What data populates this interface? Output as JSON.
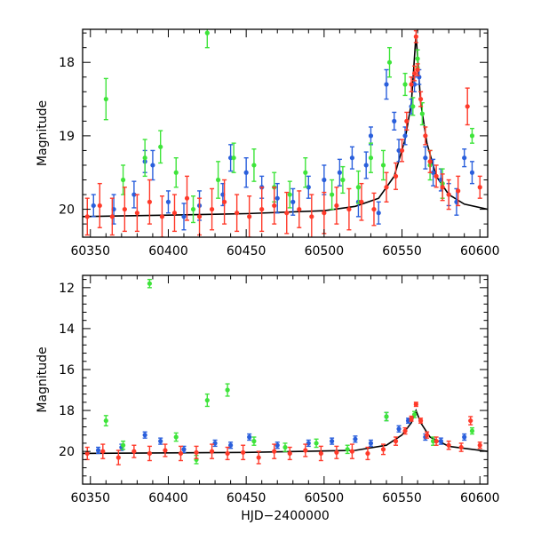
{
  "chart_data": [
    {
      "type": "scatter",
      "panel": "top",
      "xlabel": "",
      "ylabel": "Magnitude",
      "xlim": [
        60345,
        60605
      ],
      "ylim": [
        20.38,
        17.55
      ],
      "x_ticks": [
        60350,
        60400,
        60450,
        60500,
        60550,
        60600
      ],
      "y_ticks": [
        18,
        19,
        20
      ],
      "model_curve": {
        "color": "#000000",
        "x": [
          60345,
          60400,
          60450,
          60500,
          60520,
          60535,
          60545,
          60552,
          60556,
          60559,
          60562,
          60566,
          60572,
          60580,
          60590,
          60605
        ],
        "y": [
          20.1,
          20.08,
          20.06,
          20.02,
          19.96,
          19.85,
          19.55,
          19.05,
          18.55,
          17.62,
          18.55,
          19.1,
          19.55,
          19.8,
          19.93,
          20.0
        ]
      },
      "series": [
        {
          "name": "",
          "color": "#2a5fdc",
          "x": [
            60352,
            60365,
            60378,
            60385,
            60390,
            60400,
            60410,
            60420,
            60435,
            60440,
            60450,
            60460,
            60470,
            60480,
            60490,
            60500,
            60510,
            60518,
            60522,
            60527,
            60530,
            60535,
            60540,
            60545,
            60548,
            60552,
            60556,
            60558,
            60561,
            60565,
            60570,
            60575,
            60580,
            60585,
            60590,
            60595
          ],
          "y": [
            19.95,
            20.0,
            19.8,
            19.35,
            19.4,
            19.9,
            20.1,
            19.95,
            19.8,
            19.3,
            19.5,
            19.7,
            19.85,
            19.9,
            19.7,
            19.6,
            19.5,
            19.3,
            19.9,
            19.4,
            19.0,
            20.05,
            18.3,
            18.8,
            19.2,
            19.0,
            18.6,
            18.3,
            18.2,
            19.3,
            19.5,
            19.6,
            19.8,
            19.9,
            19.3,
            19.5
          ],
          "err": [
            0.15,
            0.2,
            0.18,
            0.15,
            0.2,
            0.15,
            0.18,
            0.2,
            0.15,
            0.18,
            0.2,
            0.15,
            0.2,
            0.18,
            0.15,
            0.2,
            0.18,
            0.15,
            0.2,
            0.18,
            0.12,
            0.15,
            0.2,
            0.12,
            0.15,
            0.12,
            0.1,
            0.1,
            0.1,
            0.15,
            0.18,
            0.15,
            0.15,
            0.18,
            0.12,
            0.15
          ]
        },
        {
          "name": "",
          "color": "#3ee43a",
          "x": [
            60360,
            60371,
            60385,
            60395,
            60405,
            60416,
            60425,
            60432,
            60442,
            60455,
            60468,
            60478,
            60488,
            60505,
            60512,
            60522,
            60530,
            60538,
            60542,
            60552,
            60557,
            60560,
            60563,
            60568,
            60576,
            60595
          ],
          "y": [
            18.5,
            19.6,
            19.3,
            19.15,
            19.5,
            20.0,
            17.6,
            19.6,
            19.3,
            19.4,
            19.7,
            19.8,
            19.5,
            19.8,
            19.6,
            19.7,
            19.3,
            19.4,
            18.0,
            18.3,
            18.6,
            17.95,
            18.7,
            19.4,
            19.65,
            19.0
          ],
          "err": [
            0.28,
            0.2,
            0.25,
            0.22,
            0.2,
            0.18,
            0.2,
            0.25,
            0.2,
            0.22,
            0.2,
            0.18,
            0.2,
            0.2,
            0.18,
            0.22,
            0.2,
            0.2,
            0.2,
            0.15,
            0.12,
            0.12,
            0.15,
            0.2,
            0.2,
            0.1
          ]
        },
        {
          "name": "",
          "color": "#ff3a2a",
          "x": [
            60348,
            60356,
            60364,
            60372,
            60380,
            60388,
            60396,
            60404,
            60412,
            60420,
            60428,
            60436,
            60444,
            60452,
            60460,
            60468,
            60476,
            60484,
            60492,
            60500,
            60508,
            60516,
            60524,
            60532,
            60540,
            60546,
            60550,
            60553,
            60556,
            60558,
            60559,
            60560,
            60562,
            60565,
            60568,
            60572,
            60576,
            60580,
            60586,
            60592,
            60600
          ],
          "y": [
            20.1,
            19.95,
            20.1,
            20.0,
            20.05,
            19.9,
            20.1,
            20.05,
            19.85,
            20.1,
            20.0,
            19.9,
            20.05,
            20.1,
            20.0,
            19.95,
            20.05,
            20.0,
            20.1,
            20.05,
            19.95,
            20.0,
            19.9,
            20.0,
            19.7,
            19.55,
            19.2,
            18.8,
            18.3,
            18.15,
            17.65,
            18.1,
            18.5,
            19.0,
            19.35,
            19.55,
            19.7,
            19.8,
            19.75,
            18.6,
            19.7
          ],
          "err": [
            0.25,
            0.3,
            0.25,
            0.3,
            0.25,
            0.3,
            0.28,
            0.25,
            0.3,
            0.25,
            0.28,
            0.3,
            0.25,
            0.28,
            0.3,
            0.25,
            0.28,
            0.25,
            0.3,
            0.28,
            0.25,
            0.28,
            0.25,
            0.22,
            0.2,
            0.18,
            0.15,
            0.12,
            0.1,
            0.1,
            0.08,
            0.08,
            0.1,
            0.12,
            0.15,
            0.15,
            0.18,
            0.2,
            0.2,
            0.25,
            0.15
          ]
        }
      ]
    },
    {
      "type": "scatter",
      "panel": "bottom",
      "xlabel": "HJD−2400000",
      "ylabel": "Magnitude",
      "xlim": [
        60345,
        60605
      ],
      "ylim": [
        21.6,
        11.4
      ],
      "x_ticks": [
        60350,
        60400,
        60450,
        60500,
        60550,
        60600
      ],
      "y_ticks": [
        12,
        14,
        16,
        18,
        20
      ],
      "model_curve": {
        "color": "#000000",
        "x": [
          60345,
          60450,
          60520,
          60540,
          60550,
          60556,
          60559,
          60562,
          60568,
          60580,
          60605
        ],
        "y": [
          20.1,
          20.05,
          19.95,
          19.7,
          19.2,
          18.6,
          18.0,
          18.6,
          19.3,
          19.75,
          20.0
        ]
      },
      "series": [
        {
          "name": "",
          "color": "#2a5fdc",
          "x": [
            60355,
            60370,
            60385,
            60395,
            60410,
            60430,
            60440,
            60452,
            60470,
            60490,
            60505,
            60520,
            60530,
            60540,
            60548,
            60554,
            60565,
            60575,
            60590
          ],
          "y": [
            19.95,
            19.8,
            19.2,
            19.5,
            19.9,
            19.6,
            19.7,
            19.3,
            19.7,
            19.6,
            19.5,
            19.4,
            19.6,
            18.3,
            18.9,
            18.5,
            19.3,
            19.5,
            19.3
          ],
          "err": [
            0.15,
            0.15,
            0.15,
            0.15,
            0.15,
            0.15,
            0.15,
            0.15,
            0.15,
            0.15,
            0.15,
            0.15,
            0.15,
            0.2,
            0.15,
            0.12,
            0.15,
            0.15,
            0.15
          ]
        },
        {
          "name": "",
          "color": "#3ee43a",
          "x": [
            60360,
            60371,
            60388,
            60405,
            60418,
            60425,
            60438,
            60455,
            60475,
            60495,
            60515,
            60540,
            60558,
            60570,
            60595
          ],
          "y": [
            18.5,
            19.7,
            11.8,
            19.3,
            20.4,
            17.5,
            17.0,
            19.5,
            19.8,
            19.6,
            19.9,
            18.3,
            18.2,
            19.5,
            19.0
          ],
          "err": [
            0.25,
            0.2,
            0.2,
            0.2,
            0.2,
            0.3,
            0.3,
            0.2,
            0.2,
            0.2,
            0.2,
            0.2,
            0.15,
            0.2,
            0.15
          ]
        },
        {
          "name": "",
          "color": "#ff3a2a",
          "x": [
            60348,
            60358,
            60368,
            60378,
            60388,
            60398,
            60408,
            60418,
            60428,
            60438,
            60448,
            60458,
            60468,
            60478,
            60488,
            60498,
            60508,
            60518,
            60528,
            60538,
            60546,
            60552,
            60556,
            60559,
            60562,
            60566,
            60572,
            60580,
            60588,
            60594,
            60600
          ],
          "y": [
            20.1,
            20.0,
            20.3,
            20.0,
            20.1,
            19.95,
            20.1,
            20.05,
            20.0,
            20.1,
            20.05,
            20.3,
            20.0,
            20.1,
            19.95,
            20.1,
            20.05,
            20.0,
            20.1,
            19.9,
            19.5,
            19.0,
            18.4,
            17.7,
            18.5,
            19.2,
            19.5,
            19.7,
            19.8,
            18.5,
            19.7
          ],
          "err": [
            0.3,
            0.35,
            0.35,
            0.3,
            0.35,
            0.3,
            0.35,
            0.3,
            0.35,
            0.3,
            0.35,
            0.3,
            0.35,
            0.3,
            0.3,
            0.35,
            0.3,
            0.35,
            0.3,
            0.25,
            0.2,
            0.15,
            0.12,
            0.1,
            0.12,
            0.15,
            0.2,
            0.2,
            0.2,
            0.2,
            0.15
          ]
        }
      ]
    }
  ]
}
